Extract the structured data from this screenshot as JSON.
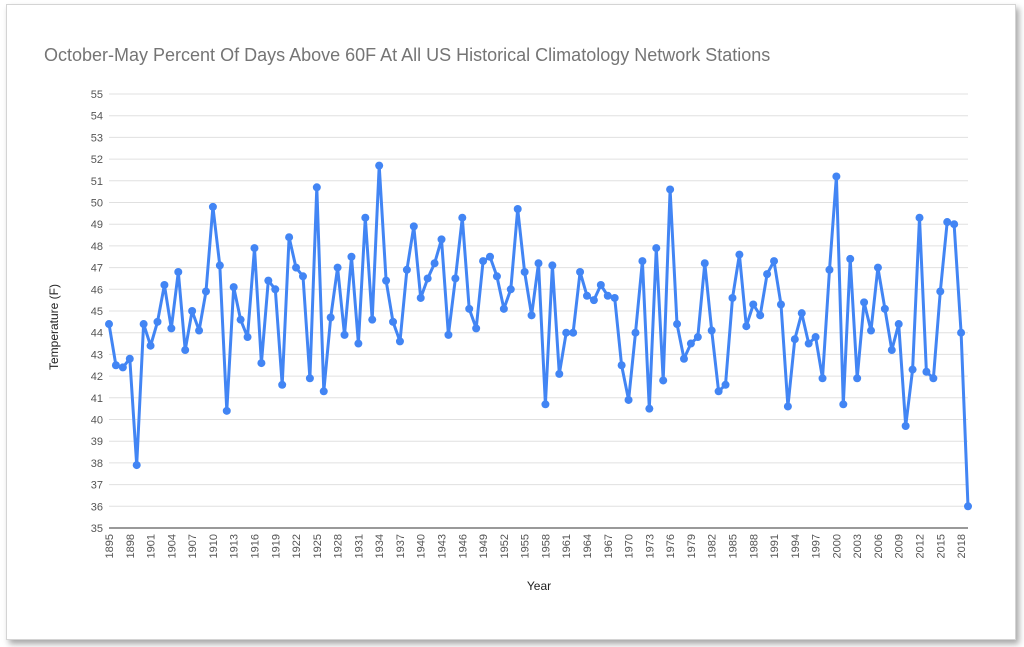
{
  "chart_data": {
    "type": "line",
    "title": "October-May Percent Of Days Above 60F At All US Historical Climatology Network Stations",
    "xlabel": "Year",
    "ylabel": "Temperature (F)",
    "ylim": [
      35,
      55
    ],
    "yticks": [
      35,
      36,
      37,
      38,
      39,
      40,
      41,
      42,
      43,
      44,
      45,
      46,
      47,
      48,
      49,
      50,
      51,
      52,
      53,
      54,
      55
    ],
    "xlim": [
      1895,
      2019
    ],
    "xtick_labels": [
      "1895",
      "1898",
      "1901",
      "1904",
      "1907",
      "1910",
      "1913",
      "1916",
      "1919",
      "1922",
      "1925",
      "1928",
      "1931",
      "1934",
      "1937",
      "1940",
      "1943",
      "1946",
      "1949",
      "1952",
      "1955",
      "1958",
      "1961",
      "1964",
      "1967",
      "1970",
      "1973",
      "1976",
      "1979",
      "1982",
      "1985",
      "1988",
      "1991",
      "1994",
      "1997",
      "2000",
      "2003",
      "2006",
      "2009",
      "2012",
      "2015",
      "2018"
    ],
    "grid": true,
    "legend": "none",
    "series": [
      {
        "color": "#4285f4",
        "x": [
          1895,
          1896,
          1897,
          1898,
          1899,
          1900,
          1901,
          1902,
          1903,
          1904,
          1905,
          1906,
          1907,
          1908,
          1909,
          1910,
          1911,
          1912,
          1913,
          1914,
          1915,
          1916,
          1917,
          1918,
          1919,
          1920,
          1921,
          1922,
          1923,
          1924,
          1925,
          1926,
          1927,
          1928,
          1929,
          1930,
          1931,
          1932,
          1933,
          1934,
          1935,
          1936,
          1937,
          1938,
          1939,
          1940,
          1941,
          1942,
          1943,
          1944,
          1945,
          1946,
          1947,
          1948,
          1949,
          1950,
          1951,
          1952,
          1953,
          1954,
          1955,
          1956,
          1957,
          1958,
          1959,
          1960,
          1961,
          1962,
          1963,
          1964,
          1965,
          1966,
          1967,
          1968,
          1969,
          1970,
          1971,
          1972,
          1973,
          1974,
          1975,
          1976,
          1977,
          1978,
          1979,
          1980,
          1981,
          1982,
          1983,
          1984,
          1985,
          1986,
          1987,
          1988,
          1989,
          1990,
          1991,
          1992,
          1993,
          1994,
          1995,
          1996,
          1997,
          1998,
          1999,
          2000,
          2001,
          2002,
          2003,
          2004,
          2005,
          2006,
          2007,
          2008,
          2009,
          2010,
          2011,
          2012,
          2013,
          2014,
          2015,
          2016,
          2017,
          2018,
          2019
        ],
        "y": [
          44.4,
          42.5,
          42.4,
          42.8,
          37.9,
          44.4,
          43.4,
          44.5,
          46.2,
          44.2,
          46.8,
          43.2,
          45.0,
          44.1,
          45.9,
          49.8,
          47.1,
          40.4,
          46.1,
          44.6,
          43.8,
          47.9,
          42.6,
          46.4,
          46.0,
          41.6,
          48.4,
          47.0,
          46.6,
          41.9,
          50.7,
          41.3,
          44.7,
          47.0,
          43.9,
          47.5,
          43.5,
          49.3,
          44.6,
          51.7,
          46.4,
          44.5,
          43.6,
          46.9,
          48.9,
          45.6,
          46.5,
          47.2,
          48.3,
          43.9,
          46.5,
          49.3,
          45.1,
          44.2,
          47.3,
          47.5,
          46.6,
          45.1,
          46.0,
          49.7,
          46.8,
          44.8,
          47.2,
          40.7,
          47.1,
          42.1,
          44.0,
          44.0,
          46.8,
          45.7,
          45.5,
          46.2,
          45.7,
          45.6,
          42.5,
          40.9,
          44.0,
          47.3,
          40.5,
          47.9,
          41.8,
          50.6,
          44.4,
          42.8,
          43.5,
          43.8,
          47.2,
          44.1,
          41.3,
          41.6,
          45.6,
          47.6,
          44.3,
          45.3,
          44.8,
          46.7,
          47.3,
          45.3,
          40.6,
          43.7,
          44.9,
          43.5,
          43.8,
          41.9,
          46.9,
          51.2,
          40.7,
          47.4,
          41.9,
          45.4,
          44.1,
          47.0,
          45.1,
          43.2,
          44.4,
          39.7,
          42.3,
          49.3,
          42.2,
          41.9,
          45.9,
          49.1,
          49.0,
          44.0,
          36.0
        ]
      }
    ]
  }
}
